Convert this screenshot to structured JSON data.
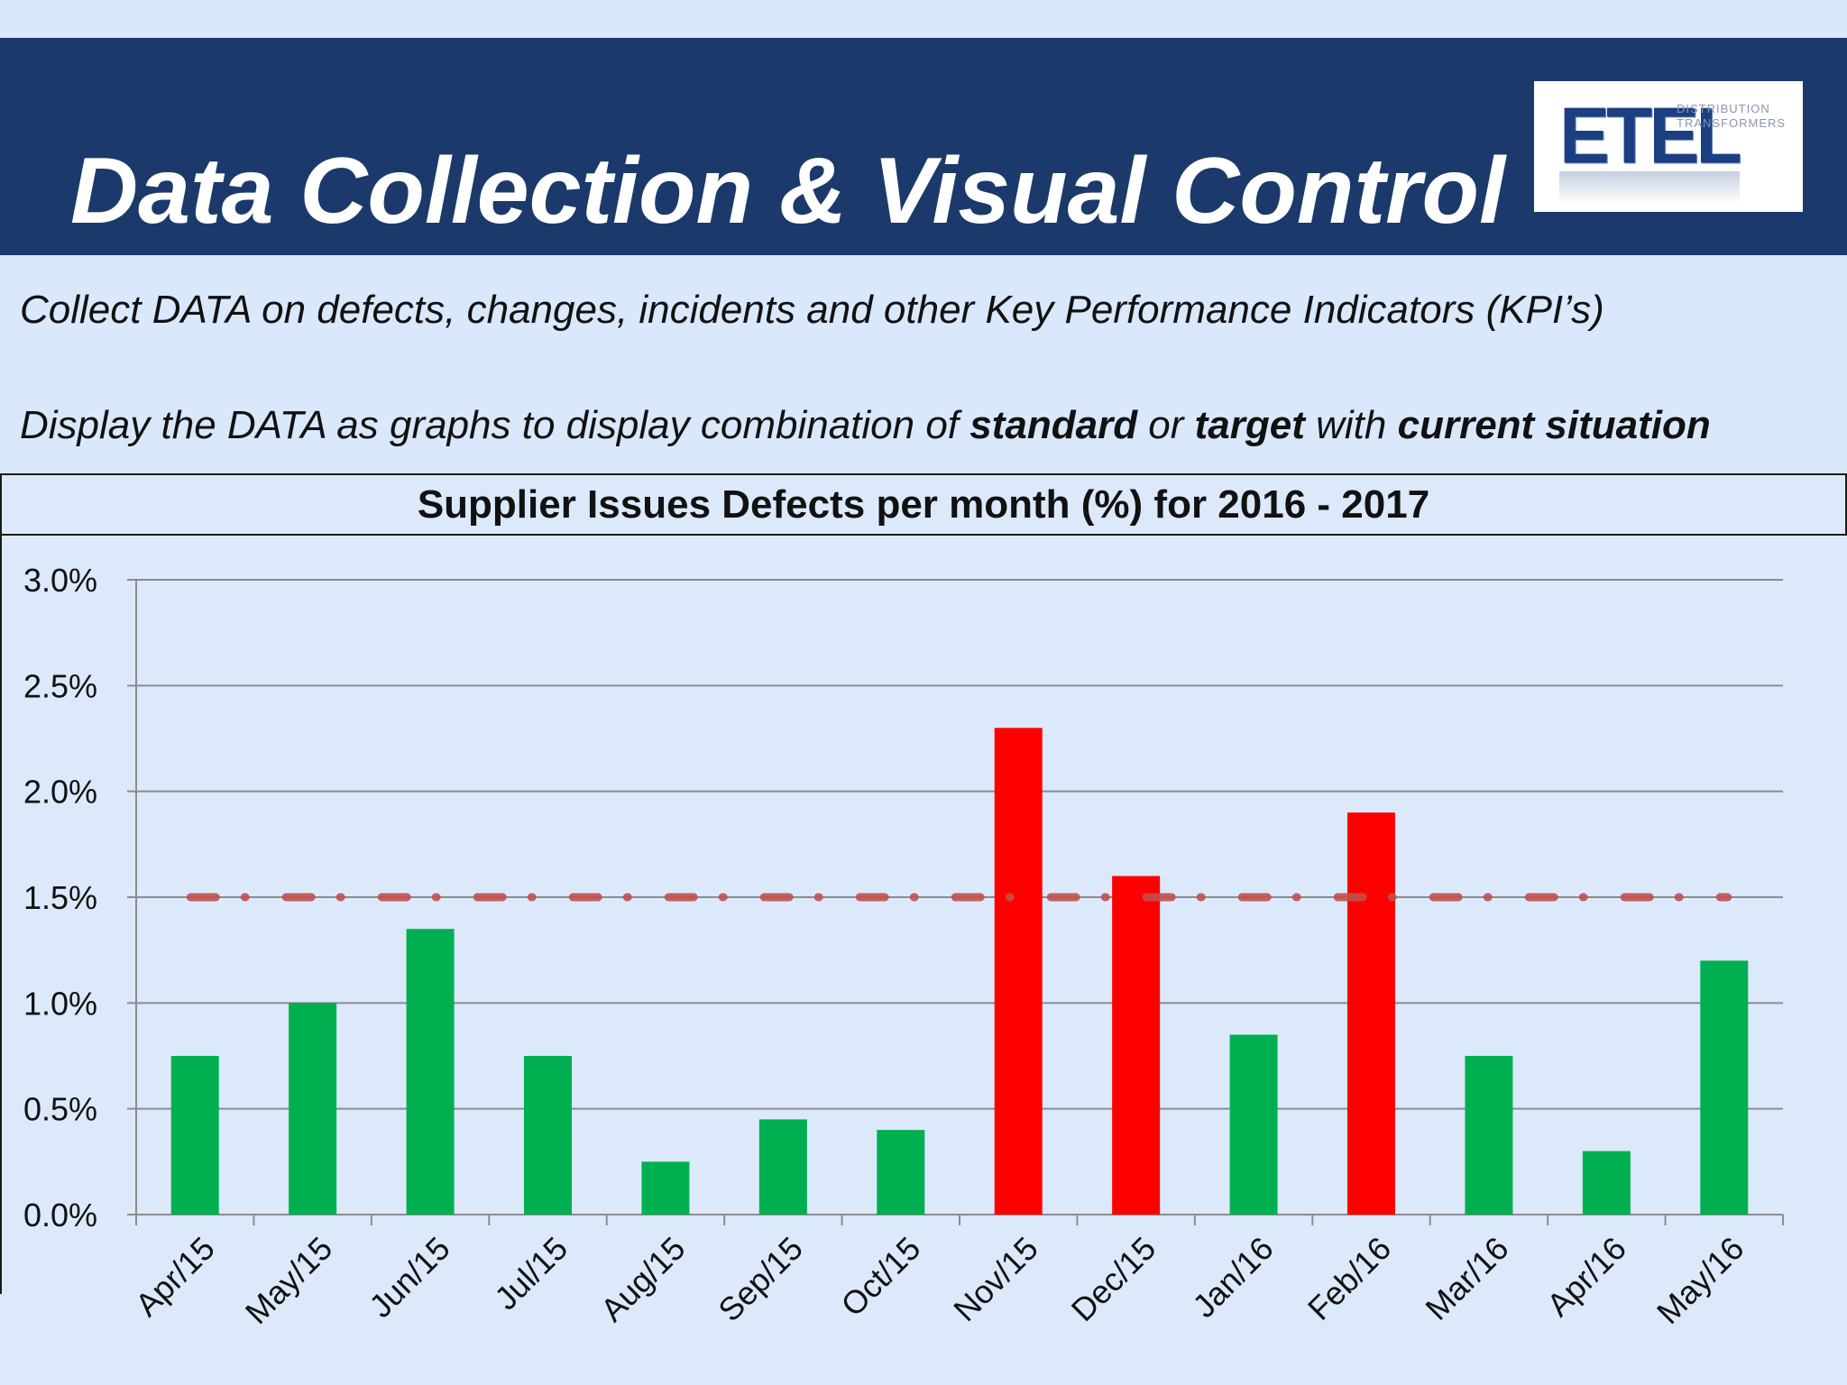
{
  "slide": {
    "title": "Data Collection & Visual Control",
    "logo": {
      "wordmark": "ETEL",
      "sub_line_1": "DISTRIBUTION",
      "sub_line_2": "TRANSFORMERS"
    },
    "line1": "Collect DATA on defects, changes, incidents and other Key Performance Indicators (KPI’s)",
    "line2": {
      "p1": "Display the DATA as graphs to display combination of ",
      "b1": "standard",
      "p2": " or ",
      "b2": "target",
      "p3": " with ",
      "b3": "current situation"
    }
  },
  "chart_data": {
    "type": "bar",
    "title": "Supplier Issues Defects per month (%) for 2016 - 2017",
    "xlabel": "",
    "ylabel": "",
    "categories": [
      "Apr/15",
      "May/15",
      "Jun/15",
      "Jul/15",
      "Aug/15",
      "Sep/15",
      "Oct/15",
      "Nov/15",
      "Dec/15",
      "Jan/16",
      "Feb/16",
      "Mar/16",
      "Apr/16",
      "May/16"
    ],
    "values": [
      0.75,
      1.0,
      1.35,
      0.75,
      0.25,
      0.45,
      0.4,
      2.3,
      1.6,
      0.85,
      1.9,
      0.75,
      0.3,
      1.2
    ],
    "unit": "%",
    "ylim": [
      0,
      3.0
    ],
    "yticks": [
      "0.0%",
      "0.5%",
      "1.0%",
      "1.5%",
      "2.0%",
      "2.5%",
      "3.0%"
    ],
    "target": 1.5,
    "target_line_style": "dash-dot",
    "grid": true,
    "colors": {
      "below_target": "#00b050",
      "above_target": "#ff0000",
      "target_line": "#c0504d",
      "grid": "#8c8c8c"
    }
  }
}
